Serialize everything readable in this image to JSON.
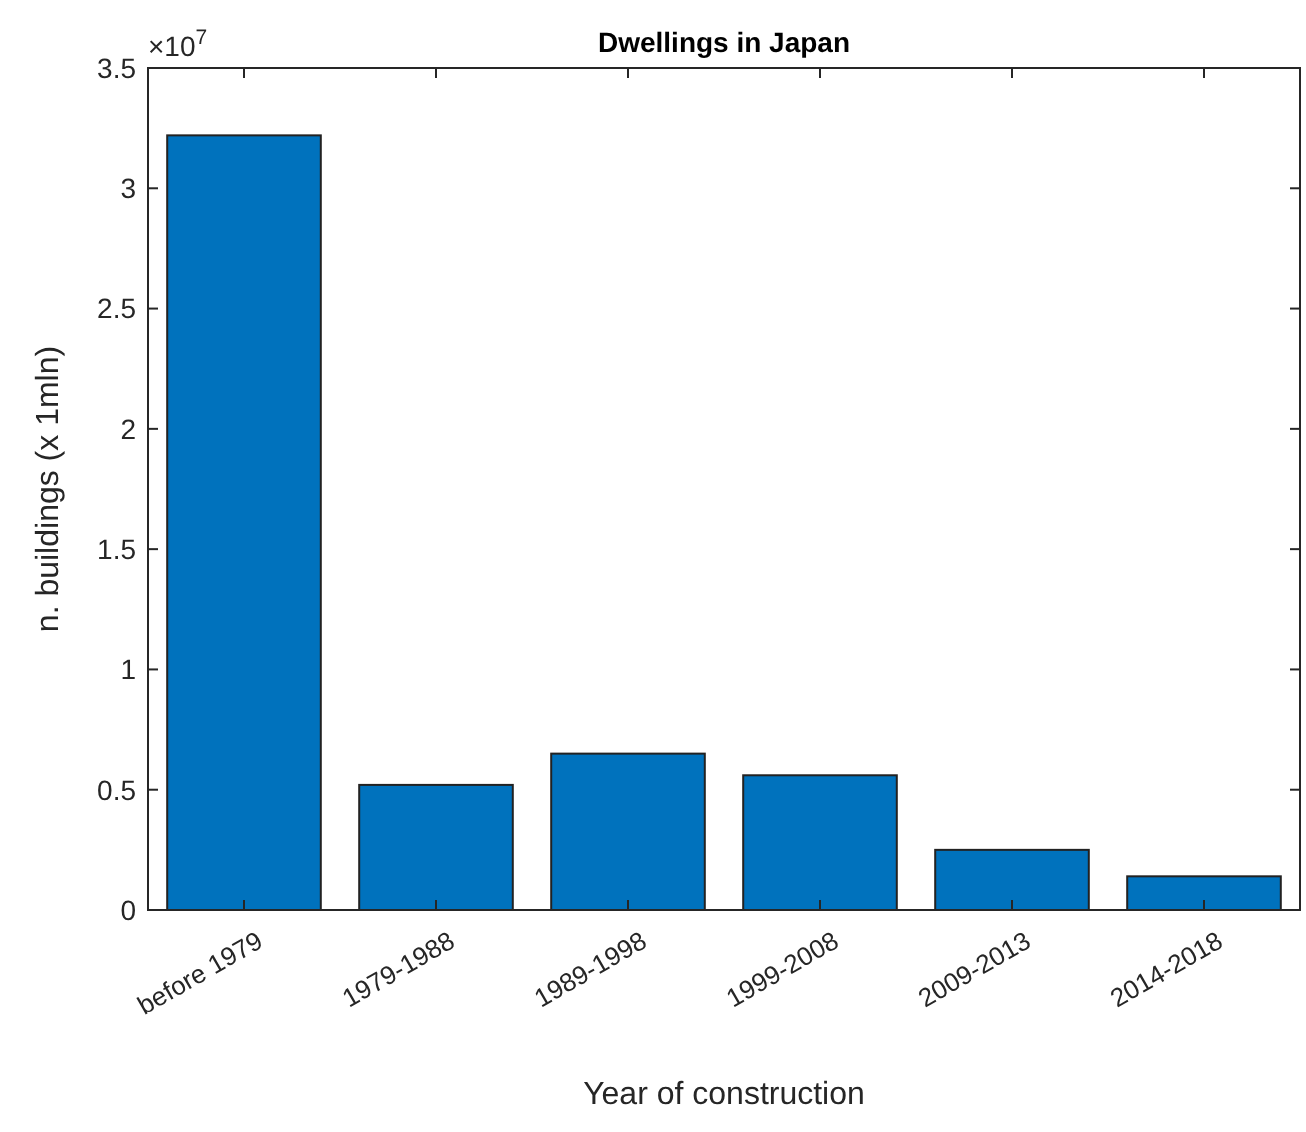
{
  "chart_data": {
    "type": "bar",
    "title": "Dwellings in Japan",
    "xlabel": "Year of construction",
    "ylabel": "n. buildings (x 1mln)",
    "categories": [
      "before 1979",
      "1979-1988",
      "1989-1998",
      "1999-2008",
      "2009-2013",
      "2014-2018"
    ],
    "values": [
      3.22,
      0.52,
      0.65,
      0.56,
      0.25,
      0.14
    ],
    "color": "#0072bd",
    "ylim": [
      0,
      3.5
    ],
    "yticks": [
      0,
      0.5,
      1,
      1.5,
      2,
      2.5,
      3,
      3.5
    ],
    "annotations": [
      "×10$^{7}$"
    ],
    "grid": false
  }
}
